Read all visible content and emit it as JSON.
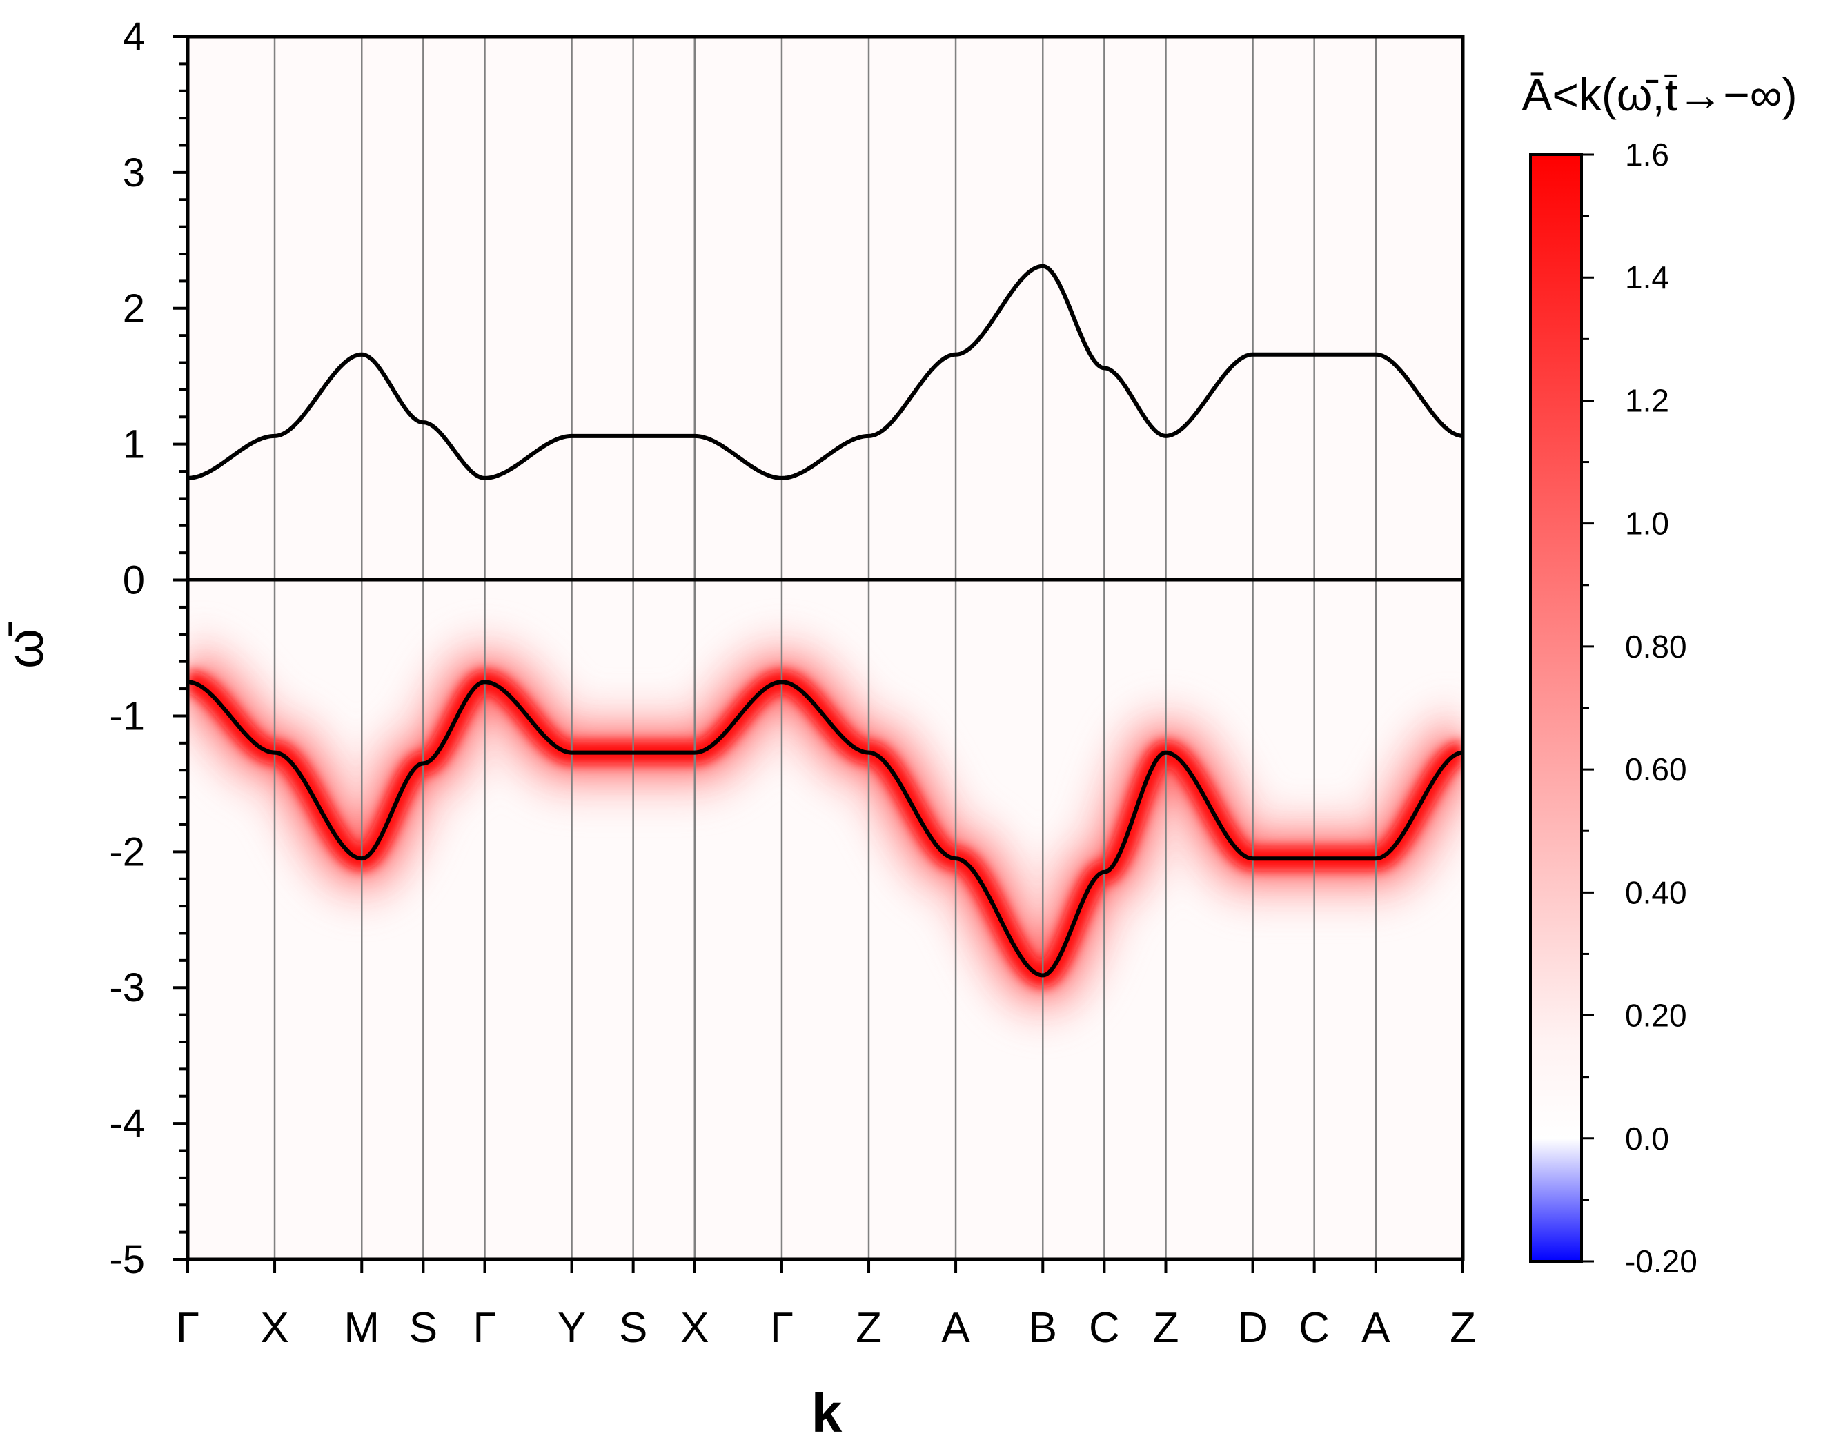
{
  "chart_data": {
    "type": "heatmap",
    "title": "",
    "xlabel": "k",
    "ylabel": "ω̄",
    "ylim": [
      -5,
      4
    ],
    "yticks": [
      4,
      3,
      2,
      1,
      0,
      -1,
      -2,
      -3,
      -4,
      -5
    ],
    "k_path": [
      {
        "label": "Γ",
        "x": 0
      },
      {
        "label": "X",
        "x": 0.785
      },
      {
        "label": "M",
        "x": 1.571
      },
      {
        "label": "S",
        "x": 2.126
      },
      {
        "label": "Γ",
        "x": 2.681
      },
      {
        "label": "Y",
        "x": 3.466
      },
      {
        "label": "S",
        "x": 4.021
      },
      {
        "label": "X",
        "x": 4.576
      },
      {
        "label": "Γ",
        "x": 5.362
      },
      {
        "label": "Z",
        "x": 6.147
      },
      {
        "label": "A",
        "x": 6.932
      },
      {
        "label": "B",
        "x": 7.718
      },
      {
        "label": "C",
        "x": 8.273
      },
      {
        "label": "Z",
        "x": 8.828
      },
      {
        "label": "D",
        "x": 9.613
      },
      {
        "label": "C",
        "x": 10.168
      },
      {
        "label": "A",
        "x": 10.723
      },
      {
        "label": "Z",
        "x": 11.509
      }
    ],
    "series": [
      {
        "band": "upper",
        "values": [
          0.75,
          1.06,
          1.66,
          1.16,
          0.75,
          1.06,
          1.06,
          1.06,
          0.75,
          1.06,
          1.66,
          2.31,
          1.56,
          1.06,
          1.66,
          1.66,
          1.66,
          1.06
        ]
      },
      {
        "band": "lower",
        "values": [
          -0.75,
          -1.27,
          -2.05,
          -1.35,
          -0.75,
          -1.27,
          -1.27,
          -1.27,
          -0.75,
          -1.27,
          -2.05,
          -2.91,
          -2.15,
          -1.27,
          -2.05,
          -2.05,
          -2.05,
          -1.27
        ]
      }
    ],
    "fermi_level": 0,
    "colorbar": {
      "title": "Ā<k(ω̄,t̄→−∞)",
      "range": [
        -0.2,
        1.6
      ],
      "ticks": [
        "1.6",
        "1.4",
        "1.2",
        "1.0",
        "0.80",
        "0.60",
        "0.40",
        "0.20",
        "0.0",
        "-0.20"
      ],
      "colors": {
        "min": "#0000ff",
        "zero": "#ffffff",
        "max": "#ff0000"
      }
    }
  }
}
